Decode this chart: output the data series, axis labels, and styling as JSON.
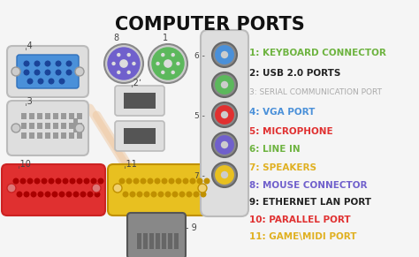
{
  "title": "COMPUTER PORTS",
  "title_color": "#111111",
  "bg_color": "#f5f5f5",
  "items": [
    {
      "text": "1: KEYBOARD CONNECTOR",
      "color": "#6db33f"
    },
    {
      "text": "2: USB 2.0 PORTS",
      "color": "#222222"
    },
    {
      "text": "3: SERIAL COMMUNICATION PORT",
      "color": "#aaaaaa"
    },
    {
      "text": "4: VGA PORT",
      "color": "#4a90d9"
    },
    {
      "text": "5: MICROPHONE",
      "color": "#e03030"
    },
    {
      "text": "6: LINE IN",
      "color": "#6db33f"
    },
    {
      "text": "7: SPEAKERS",
      "color": "#e0b020"
    },
    {
      "text": "8: MOUSE CONNECTOR",
      "color": "#7060cc"
    },
    {
      "text": "9: ETHERNET LAN PORT",
      "color": "#222222"
    },
    {
      "text": "10: PARALLEL PORT",
      "color": "#e03030"
    },
    {
      "text": "11: GAME\\MIDI PORT",
      "color": "#e0b020"
    }
  ],
  "vga_color": "#4a90d9",
  "dvi_color": "#cccccc",
  "mouse_color": "#7060cc",
  "kb_color": "#5cb85c",
  "usb_color": "#aaaaaa",
  "parallel_color": "#e03030",
  "midi_color": "#e8c020",
  "eth_color": "#606060",
  "jack_colors": [
    "#4a90d9",
    "#5cb85c",
    "#e03030",
    "#7060cc",
    "#e8c020"
  ],
  "jack_labels_left": [
    "6 -",
    "",
    "5 -",
    "",
    "7 -"
  ],
  "watermark_color": "#f0c8a0"
}
